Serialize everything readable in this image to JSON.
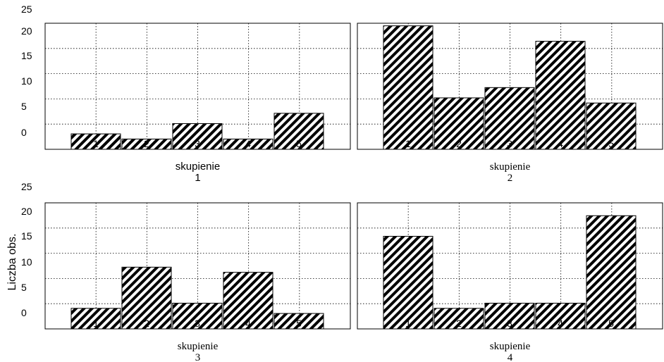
{
  "y_axis_label": "Liczba obs.",
  "chart_data": [
    {
      "type": "bar",
      "categories": [
        "1",
        "2",
        "3",
        "4",
        "5"
      ],
      "values": [
        3,
        2,
        5,
        2,
        7
      ],
      "ylim": [
        0,
        25
      ],
      "yticks": [
        0,
        5,
        10,
        15,
        20,
        25
      ],
      "xlabel": "skupienie",
      "panel_label": "1",
      "grid": true
    },
    {
      "type": "bar",
      "categories": [
        "1",
        "2",
        "3",
        "4",
        "5"
      ],
      "values": [
        24,
        10,
        12,
        21,
        9
      ],
      "ylim": [
        0,
        25
      ],
      "yticks": [
        0,
        5,
        10,
        15,
        20,
        25
      ],
      "xlabel": "skupienie",
      "panel_label": "2",
      "grid": true
    },
    {
      "type": "bar",
      "categories": [
        "1",
        "2",
        "3",
        "4",
        "5"
      ],
      "values": [
        4,
        12,
        5,
        11,
        3
      ],
      "ylim": [
        0,
        25
      ],
      "yticks": [
        0,
        5,
        10,
        15,
        20,
        25
      ],
      "xlabel": "skupienie",
      "panel_label": "3",
      "grid": true
    },
    {
      "type": "bar",
      "categories": [
        "1",
        "2",
        "3",
        "4",
        "5"
      ],
      "values": [
        18,
        4,
        5,
        5,
        22
      ],
      "ylim": [
        0,
        25
      ],
      "yticks": [
        0,
        5,
        10,
        15,
        20,
        25
      ],
      "xlabel": "skupienie",
      "panel_label": "4",
      "grid": true
    }
  ]
}
